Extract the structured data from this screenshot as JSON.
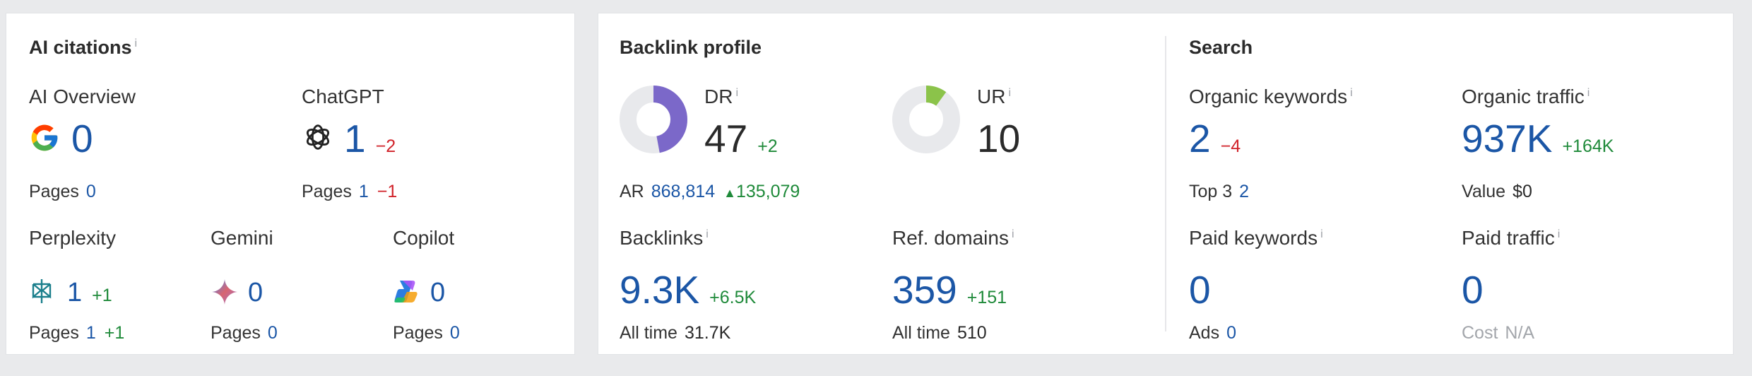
{
  "ai_citations": {
    "title": "AI citations",
    "info_glyph": "i",
    "sources": {
      "ai_overview": {
        "label": "AI Overview",
        "icon": "google-icon",
        "value": "0",
        "pages_label": "Pages",
        "pages": "0"
      },
      "chatgpt": {
        "label": "ChatGPT",
        "icon": "chatgpt-icon",
        "value": "1",
        "delta": "−2",
        "pages_label": "Pages",
        "pages": "1",
        "pages_delta": "−1"
      },
      "perplexity": {
        "label": "Perplexity",
        "icon": "perplexity-icon",
        "value": "1",
        "delta": "+1",
        "pages_label": "Pages",
        "pages": "1",
        "pages_delta": "+1"
      },
      "gemini": {
        "label": "Gemini",
        "icon": "gemini-icon",
        "value": "0",
        "pages_label": "Pages",
        "pages": "0"
      },
      "copilot": {
        "label": "Copilot",
        "icon": "copilot-icon",
        "value": "0",
        "pages_label": "Pages",
        "pages": "0"
      }
    }
  },
  "backlink_profile": {
    "title": "Backlink profile",
    "dr": {
      "label": "DR",
      "value": "47",
      "delta": "+2",
      "gauge_fraction": 0.47,
      "gauge_color": "#7b68c9"
    },
    "ar": {
      "label": "AR",
      "value": "868,814",
      "delta": "135,079",
      "delta_icon": "triangle-up-icon"
    },
    "ur": {
      "label": "UR",
      "value": "10",
      "gauge_fraction": 0.1,
      "gauge_color": "#8bc34a"
    },
    "backlinks": {
      "label": "Backlinks",
      "value": "9.3K",
      "delta": "+6.5K",
      "all_time_label": "All time",
      "all_time": "31.7K"
    },
    "ref_domains": {
      "label": "Ref. domains",
      "value": "359",
      "delta": "+151",
      "all_time_label": "All time",
      "all_time": "510"
    }
  },
  "search": {
    "title": "Search",
    "organic_keywords": {
      "label": "Organic keywords",
      "value": "2",
      "delta": "−4",
      "sub_label": "Top 3",
      "sub_value": "2"
    },
    "organic_traffic": {
      "label": "Organic traffic",
      "value": "937K",
      "delta": "+164K",
      "sub_label": "Value",
      "sub_value": "$0"
    },
    "paid_keywords": {
      "label": "Paid keywords",
      "value": "0",
      "sub_label": "Ads",
      "sub_value": "0"
    },
    "paid_traffic": {
      "label": "Paid traffic",
      "value": "0",
      "sub_label": "Cost",
      "sub_value": "N/A"
    }
  },
  "colors": {
    "accent_blue": "#1b56a6",
    "positive": "#1f8a3a",
    "negative": "#d1232a"
  }
}
